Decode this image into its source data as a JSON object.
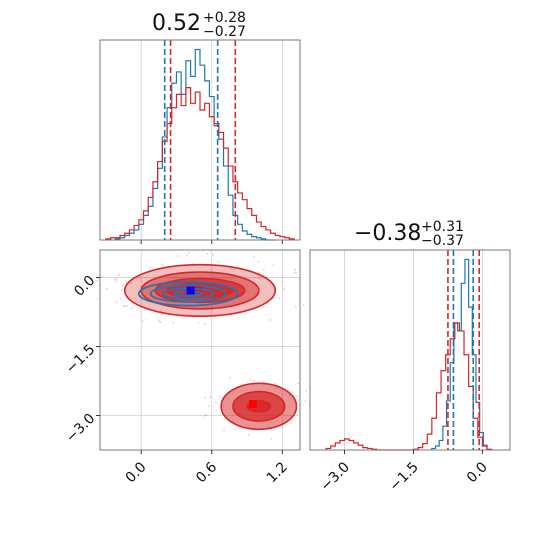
{
  "chart_data": [
    {
      "type": "histogram",
      "panel": "top-left",
      "title": {
        "value": "0.52",
        "plus": "+0.28",
        "minus": "−0.27"
      },
      "xlim": [
        -0.35,
        1.35
      ],
      "grid": true,
      "series": [
        {
          "name": "",
          "color": "#1f77b4",
          "bins": [
            -0.22,
            -0.18,
            -0.14,
            -0.1,
            -0.06,
            -0.02,
            0.02,
            0.06,
            0.1,
            0.14,
            0.18,
            0.22,
            0.26,
            0.3,
            0.34,
            0.38,
            0.42,
            0.46,
            0.5,
            0.54,
            0.58,
            0.62,
            0.66,
            0.7,
            0.74,
            0.78,
            0.82,
            0.86,
            0.9,
            0.94,
            0.98,
            1.02,
            1.06,
            1.1,
            1.14
          ],
          "counts": [
            1,
            2,
            4,
            6,
            9,
            14,
            22,
            30,
            46,
            64,
            92,
            118,
            140,
            150,
            130,
            160,
            146,
            170,
            156,
            142,
            128,
            104,
            90,
            66,
            40,
            22,
            14,
            8,
            5,
            3,
            2,
            1,
            0,
            0
          ]
        },
        {
          "name": "",
          "color": "#d62728",
          "bins": [
            -0.3,
            -0.26,
            -0.22,
            -0.18,
            -0.14,
            -0.1,
            -0.06,
            -0.02,
            0.02,
            0.06,
            0.1,
            0.14,
            0.18,
            0.22,
            0.26,
            0.3,
            0.34,
            0.38,
            0.42,
            0.46,
            0.5,
            0.54,
            0.58,
            0.62,
            0.66,
            0.7,
            0.74,
            0.78,
            0.82,
            0.86,
            0.9,
            0.94,
            0.98,
            1.02,
            1.06,
            1.1,
            1.14,
            1.18,
            1.22,
            1.26,
            1.3
          ],
          "counts": [
            1,
            2,
            2,
            4,
            6,
            9,
            13,
            18,
            26,
            38,
            52,
            70,
            88,
            104,
            118,
            130,
            120,
            136,
            122,
            132,
            116,
            122,
            110,
            102,
            96,
            82,
            66,
            52,
            42,
            36,
            28,
            22,
            16,
            12,
            9,
            6,
            4,
            3,
            2,
            1
          ]
        }
      ],
      "quantiles": [
        {
          "color": "#1f77b4",
          "values": [
            0.2,
            0.65
          ]
        },
        {
          "color": "#d62728",
          "values": [
            0.25,
            0.8
          ]
        }
      ]
    },
    {
      "type": "contour",
      "panel": "bottom-left",
      "xlim": [
        -0.35,
        1.35
      ],
      "ylim": [
        -3.75,
        0.6
      ],
      "xticks": [
        "0.0",
        "0.6",
        "1.2"
      ],
      "xtick_values": [
        0.0,
        0.6,
        1.2
      ],
      "yticks": [
        "0.0",
        "−1.5",
        "−3.0"
      ],
      "ytick_values": [
        0.0,
        -1.5,
        -3.0
      ],
      "grid": true,
      "series": [
        {
          "name": "",
          "color": "#d62728",
          "modes": [
            {
              "cx": 0.5,
              "cy": -0.28,
              "rx": [
                0.28,
                0.38,
                0.5,
                0.64
              ],
              "ry": [
                0.16,
                0.26,
                0.4,
                0.56
              ]
            },
            {
              "cx": 1.0,
              "cy": -2.8,
              "rx": [
                0.1,
                0.22,
                0.32
              ],
              "ry": [
                0.12,
                0.32,
                0.5
              ]
            }
          ],
          "max_points": [
            [
              0.48,
              -0.26
            ],
            [
              0.95,
              -2.75
            ]
          ]
        },
        {
          "name": "",
          "color": "#1f77b4",
          "modes": [
            {
              "cx": 0.4,
              "cy": -0.35,
              "rx": [
                0.12,
                0.22,
                0.32,
                0.42
              ],
              "ry": [
                0.05,
                0.11,
                0.18,
                0.26
              ]
            }
          ],
          "max_points": [
            [
              0.42,
              -0.28
            ]
          ]
        }
      ]
    },
    {
      "type": "histogram",
      "panel": "bottom-right",
      "title": {
        "value": "−0.38",
        "plus": "+0.31",
        "minus": "−0.37"
      },
      "xlim": [
        -3.75,
        0.6
      ],
      "xticks": [
        "−3.0",
        "−1.5",
        "0.0"
      ],
      "xtick_values": [
        -3.0,
        -1.5,
        0.0
      ],
      "grid": true,
      "series": [
        {
          "name": "",
          "color": "#1f77b4",
          "bins": [
            -1.1,
            -1.02,
            -0.94,
            -0.86,
            -0.78,
            -0.7,
            -0.62,
            -0.54,
            -0.46,
            -0.38,
            -0.3,
            -0.22,
            -0.14,
            -0.06,
            0.02,
            0.1
          ],
          "counts": [
            2,
            5,
            12,
            30,
            62,
            110,
            160,
            150,
            210,
            240,
            180,
            120,
            60,
            22,
            6
          ]
        },
        {
          "name": "",
          "color": "#d62728",
          "bins": [
            -3.4,
            -3.3,
            -3.2,
            -3.1,
            -3.0,
            -2.9,
            -2.8,
            -2.7,
            -2.6,
            -2.5,
            -2.4,
            -2.3,
            -2.2,
            -2.1,
            -2.0,
            -1.9,
            -1.8,
            -1.7,
            -1.6,
            -1.5,
            -1.4,
            -1.3,
            -1.2,
            -1.1,
            -1.0,
            -0.9,
            -0.8,
            -0.7,
            -0.6,
            -0.5,
            -0.4,
            -0.3,
            -0.2,
            -0.1,
            0.0,
            0.1,
            0.2
          ],
          "counts": [
            2,
            5,
            9,
            12,
            14,
            12,
            9,
            6,
            3,
            2,
            1,
            0,
            0,
            0,
            0,
            0,
            0,
            0,
            0,
            1,
            3,
            8,
            20,
            40,
            72,
            100,
            120,
            140,
            160,
            150,
            120,
            80,
            40,
            16,
            5,
            1
          ]
        }
      ],
      "quantiles": [
        {
          "color": "#1f77b4",
          "values": [
            -0.63,
            -0.2
          ]
        },
        {
          "color": "#d62728",
          "values": [
            -0.75,
            -0.07
          ]
        }
      ]
    }
  ]
}
